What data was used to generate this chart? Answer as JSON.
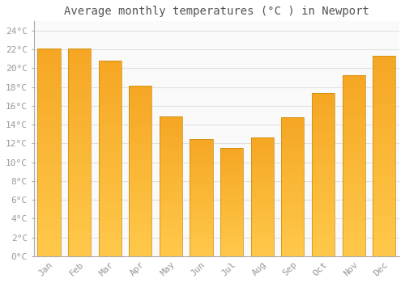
{
  "title": "Average monthly temperatures (°C ) in Newport",
  "months": [
    "Jan",
    "Feb",
    "Mar",
    "Apr",
    "May",
    "Jun",
    "Jul",
    "Aug",
    "Sep",
    "Oct",
    "Nov",
    "Dec"
  ],
  "values": [
    22.1,
    22.1,
    20.8,
    18.1,
    14.9,
    12.5,
    11.5,
    12.6,
    14.8,
    17.4,
    19.3,
    21.3
  ],
  "bar_color_top": "#F5A623",
  "bar_color_bottom": "#FFC84A",
  "bar_edge_color": "#C8880A",
  "ylim": [
    0,
    25
  ],
  "yticks": [
    0,
    2,
    4,
    6,
    8,
    10,
    12,
    14,
    16,
    18,
    20,
    22,
    24
  ],
  "background_color": "#FFFFFF",
  "plot_bg_color": "#FAFAFA",
  "grid_color": "#E0E0E0",
  "title_fontsize": 10,
  "tick_fontsize": 8,
  "font_family": "monospace",
  "tick_color": "#999999",
  "bar_width": 0.75
}
